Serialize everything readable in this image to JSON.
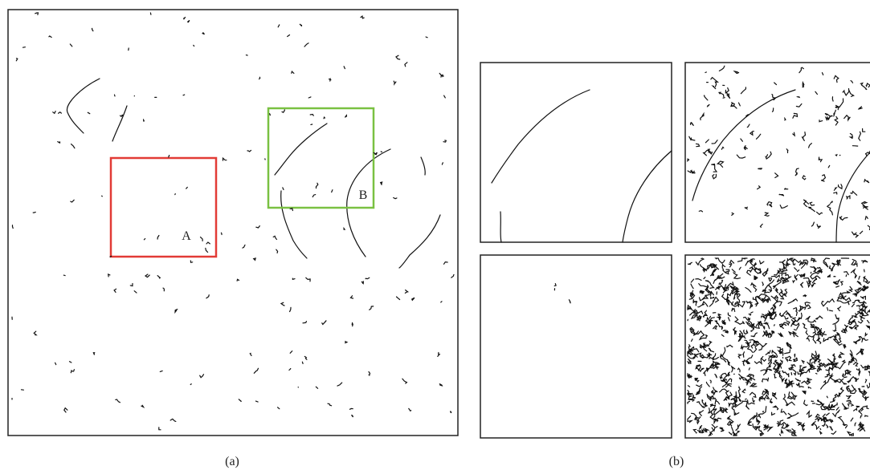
{
  "panel_a": {
    "caption": "(a)",
    "regions": [
      {
        "label": "A"
      },
      {
        "label": "B"
      }
    ]
  },
  "panel_b": {
    "caption": "(b)"
  }
}
